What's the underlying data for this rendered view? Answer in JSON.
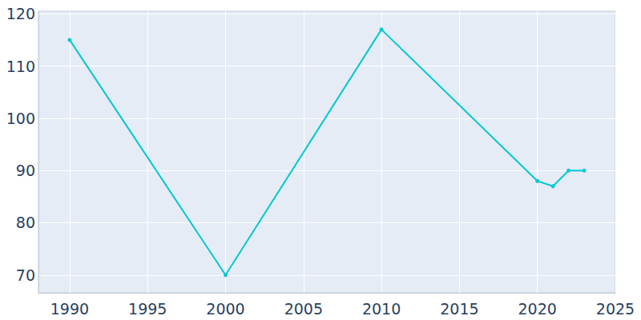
{
  "chart_data": {
    "type": "line",
    "x": [
      1990,
      2000,
      2010,
      2020,
      2021,
      2022,
      2023
    ],
    "values": [
      115,
      70,
      117,
      88,
      87,
      90,
      90
    ],
    "color": "#00c8d2",
    "marker": "circle",
    "xlim": [
      1988,
      2025
    ],
    "xticks": [
      1990,
      1995,
      2000,
      2005,
      2010,
      2015,
      2020,
      2025
    ],
    "ylim": [
      66.6,
      120.5
    ],
    "yticks": [
      70,
      80,
      90,
      100,
      110,
      120
    ],
    "grid": true
  }
}
